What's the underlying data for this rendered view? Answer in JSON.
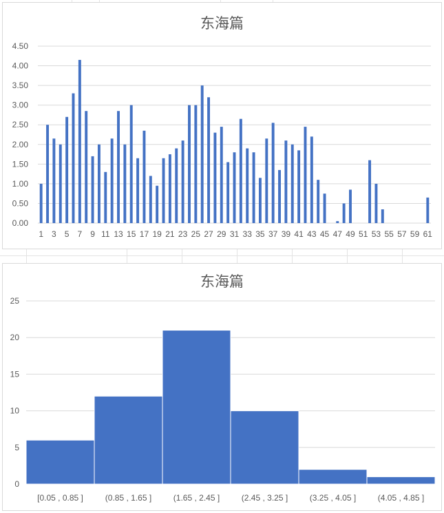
{
  "chart_data": [
    {
      "type": "bar",
      "title": "东海篇",
      "xlabel": "",
      "ylabel": "",
      "ylim": [
        0,
        4.5
      ],
      "yticks": [
        "0.00",
        "0.50",
        "1.00",
        "1.50",
        "2.00",
        "2.50",
        "3.00",
        "3.50",
        "4.00",
        "4.50"
      ],
      "grid": true,
      "legend": "none",
      "color": "#4472c4",
      "categories": [
        1,
        2,
        3,
        4,
        5,
        6,
        7,
        8,
        9,
        10,
        11,
        12,
        13,
        14,
        15,
        16,
        17,
        18,
        19,
        20,
        21,
        22,
        23,
        24,
        25,
        26,
        27,
        28,
        29,
        30,
        31,
        32,
        33,
        34,
        35,
        36,
        37,
        38,
        39,
        40,
        41,
        42,
        43,
        44,
        45,
        46,
        47,
        48,
        49,
        50,
        51,
        52,
        53,
        54,
        55,
        56,
        57,
        58,
        59,
        60,
        61
      ],
      "xtick_labels": [
        "1",
        "3",
        "5",
        "7",
        "9",
        "11",
        "13",
        "15",
        "17",
        "19",
        "21",
        "23",
        "25",
        "27",
        "29",
        "31",
        "33",
        "35",
        "37",
        "39",
        "41",
        "43",
        "45",
        "47",
        "49",
        "51",
        "53",
        "55",
        "57",
        "59",
        "61"
      ],
      "values": [
        1.0,
        2.5,
        2.15,
        2.0,
        2.7,
        3.3,
        4.15,
        2.85,
        1.7,
        2.0,
        1.3,
        2.15,
        2.85,
        2.0,
        3.0,
        1.65,
        2.35,
        1.2,
        0.95,
        1.65,
        1.75,
        1.9,
        2.1,
        3.0,
        3.0,
        3.5,
        3.2,
        2.3,
        2.45,
        1.55,
        1.8,
        2.65,
        1.9,
        1.8,
        1.15,
        2.15,
        2.55,
        1.35,
        2.1,
        2.0,
        1.85,
        2.45,
        2.2,
        1.1,
        0.75,
        0,
        0.05,
        0.5,
        0.85,
        0,
        0,
        1.6,
        1.0,
        0.35,
        0,
        0,
        0,
        0,
        0,
        0,
        0.65
      ]
    },
    {
      "type": "bar",
      "title": "东海篇",
      "xlabel": "",
      "ylabel": "",
      "ylim": [
        0,
        25
      ],
      "yticks": [
        "0",
        "5",
        "10",
        "15",
        "20",
        "25"
      ],
      "grid": true,
      "legend": "none",
      "color": "#4472c4",
      "categories": [
        "[0.05 , 0.85 ]",
        "(0.85 , 1.65 ]",
        "(1.65 , 2.45 ]",
        "(2.45 , 3.25 ]",
        "(3.25 , 4.05 ]",
        "(4.05 , 4.85 ]"
      ],
      "values": [
        6,
        12,
        21,
        10,
        2,
        1
      ]
    }
  ]
}
